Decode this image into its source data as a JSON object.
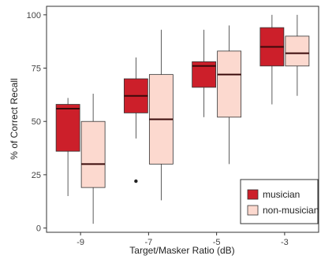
{
  "chart_data": {
    "type": "boxplot",
    "xlabel": "Target/Masker Ratio (dB)",
    "ylabel": "% of Correct Recall",
    "categories": [
      "-9",
      "-7",
      "-5",
      "-3"
    ],
    "yticks": [
      "0",
      "25",
      "50",
      "75",
      "100"
    ],
    "ylim": [
      -2,
      104
    ],
    "grid": false,
    "legend_position": "bottom-right",
    "series": [
      {
        "name": "musician",
        "color": "#cc1f2a",
        "boxes": [
          {
            "min": 15,
            "q1": 36,
            "median": 56,
            "q3": 58,
            "max": 61,
            "outliers": []
          },
          {
            "min": 42,
            "q1": 54,
            "median": 62,
            "q3": 70,
            "max": 80,
            "outliers": [
              22
            ]
          },
          {
            "min": 52,
            "q1": 66,
            "median": 76,
            "q3": 78,
            "max": 93,
            "outliers": []
          },
          {
            "min": 58,
            "q1": 76,
            "median": 85,
            "q3": 94,
            "max": 100,
            "outliers": []
          }
        ]
      },
      {
        "name": "non-musician",
        "color": "#fcd9cf",
        "boxes": [
          {
            "min": 2,
            "q1": 19,
            "median": 30,
            "q3": 50,
            "max": 63,
            "outliers": []
          },
          {
            "min": 13,
            "q1": 30,
            "median": 51,
            "q3": 72,
            "max": 93,
            "outliers": []
          },
          {
            "min": 30,
            "q1": 52,
            "median": 72,
            "q3": 83,
            "max": 95,
            "outliers": []
          },
          {
            "min": 62,
            "q1": 76,
            "median": 82,
            "q3": 90,
            "max": 100,
            "outliers": []
          }
        ]
      }
    ]
  }
}
